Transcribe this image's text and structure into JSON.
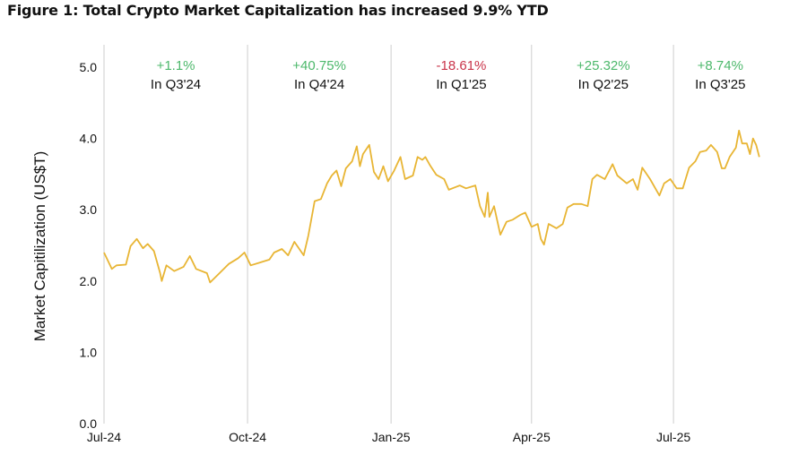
{
  "chart_data": {
    "type": "line",
    "title": "Figure 1: Total Crypto Market Capitalization has increased 9.9% YTD",
    "xlabel": "",
    "ylabel": "Market Capitilization (US$T)",
    "ylim": [
      0,
      5
    ],
    "yticks": [
      "0.0",
      "1.0",
      "2.0",
      "3.0",
      "4.0",
      "5.0"
    ],
    "x_unit": "days since 1 Jul 2024",
    "xlim": [
      0,
      420
    ],
    "xticks": [
      {
        "day": 0,
        "label": "Jul-24"
      },
      {
        "day": 92,
        "label": "Oct-24"
      },
      {
        "day": 184,
        "label": "Jan-25"
      },
      {
        "day": 274,
        "label": "Apr-25"
      },
      {
        "day": 365,
        "label": "Jul-25"
      }
    ],
    "grid": "vertical lines at quarter starts",
    "line_color": "#e8b534",
    "annotations": [
      {
        "change": "+1.1%",
        "label": "In Q3'24",
        "color": "#4cb86b"
      },
      {
        "change": "+40.75%",
        "label": "In Q4'24",
        "color": "#4cb86b"
      },
      {
        "change": "-18.61%",
        "label": "In Q1'25",
        "color": "#c9344a"
      },
      {
        "change": "+25.32%",
        "label": "In Q2'25",
        "color": "#4cb86b"
      },
      {
        "change": "+8.74%",
        "label": "In Q3'25",
        "color": "#4cb86b"
      }
    ],
    "series": [
      {
        "name": "Total Crypto Market Cap",
        "points": [
          [
            0,
            2.4
          ],
          [
            5,
            2.17
          ],
          [
            8,
            2.22
          ],
          [
            14,
            2.23
          ],
          [
            17,
            2.49
          ],
          [
            21,
            2.59
          ],
          [
            25,
            2.46
          ],
          [
            28,
            2.52
          ],
          [
            32,
            2.42
          ],
          [
            36,
            2.11
          ],
          [
            37,
            2.0
          ],
          [
            40,
            2.22
          ],
          [
            45,
            2.14
          ],
          [
            51,
            2.2
          ],
          [
            55,
            2.35
          ],
          [
            59,
            2.17
          ],
          [
            66,
            2.11
          ],
          [
            68,
            1.98
          ],
          [
            74,
            2.11
          ],
          [
            80,
            2.24
          ],
          [
            86,
            2.32
          ],
          [
            90,
            2.4
          ],
          [
            94,
            2.22
          ],
          [
            100,
            2.26
          ],
          [
            106,
            2.3
          ],
          [
            109,
            2.4
          ],
          [
            114,
            2.45
          ],
          [
            118,
            2.36
          ],
          [
            122,
            2.55
          ],
          [
            128,
            2.36
          ],
          [
            131,
            2.64
          ],
          [
            135,
            3.12
          ],
          [
            139,
            3.15
          ],
          [
            143,
            3.37
          ],
          [
            146,
            3.48
          ],
          [
            149,
            3.55
          ],
          [
            152,
            3.33
          ],
          [
            155,
            3.58
          ],
          [
            159,
            3.68
          ],
          [
            162,
            3.89
          ],
          [
            164,
            3.61
          ],
          [
            166,
            3.78
          ],
          [
            170,
            3.91
          ],
          [
            173,
            3.53
          ],
          [
            176,
            3.43
          ],
          [
            179,
            3.61
          ],
          [
            182,
            3.4
          ],
          [
            186,
            3.55
          ],
          [
            190,
            3.74
          ],
          [
            193,
            3.43
          ],
          [
            198,
            3.48
          ],
          [
            201,
            3.74
          ],
          [
            204,
            3.7
          ],
          [
            206,
            3.74
          ],
          [
            209,
            3.62
          ],
          [
            213,
            3.49
          ],
          [
            218,
            3.43
          ],
          [
            221,
            3.28
          ],
          [
            228,
            3.34
          ],
          [
            232,
            3.3
          ],
          [
            238,
            3.34
          ],
          [
            241,
            3.05
          ],
          [
            244,
            2.9
          ],
          [
            246,
            3.24
          ],
          [
            247,
            2.9
          ],
          [
            250,
            3.05
          ],
          [
            254,
            2.65
          ],
          [
            258,
            2.83
          ],
          [
            262,
            2.86
          ],
          [
            267,
            2.93
          ],
          [
            270,
            2.96
          ],
          [
            274,
            2.76
          ],
          [
            278,
            2.8
          ],
          [
            280,
            2.59
          ],
          [
            282,
            2.51
          ],
          [
            285,
            2.8
          ],
          [
            290,
            2.74
          ],
          [
            294,
            2.8
          ],
          [
            297,
            3.03
          ],
          [
            301,
            3.08
          ],
          [
            306,
            3.08
          ],
          [
            310,
            3.05
          ],
          [
            313,
            3.43
          ],
          [
            316,
            3.49
          ],
          [
            321,
            3.43
          ],
          [
            326,
            3.64
          ],
          [
            329,
            3.48
          ],
          [
            335,
            3.37
          ],
          [
            339,
            3.43
          ],
          [
            342,
            3.28
          ],
          [
            345,
            3.59
          ],
          [
            350,
            3.43
          ],
          [
            356,
            3.2
          ],
          [
            359,
            3.37
          ],
          [
            363,
            3.43
          ],
          [
            367,
            3.3
          ],
          [
            371,
            3.3
          ],
          [
            375,
            3.59
          ],
          [
            379,
            3.68
          ],
          [
            382,
            3.81
          ],
          [
            386,
            3.83
          ],
          [
            389,
            3.91
          ],
          [
            393,
            3.81
          ],
          [
            396,
            3.58
          ],
          [
            398,
            3.58
          ],
          [
            401,
            3.74
          ],
          [
            405,
            3.87
          ],
          [
            407,
            4.11
          ],
          [
            409,
            3.93
          ],
          [
            412,
            3.93
          ],
          [
            414,
            3.78
          ],
          [
            416,
            4.0
          ],
          [
            418,
            3.91
          ],
          [
            420,
            3.74
          ]
        ]
      }
    ]
  }
}
